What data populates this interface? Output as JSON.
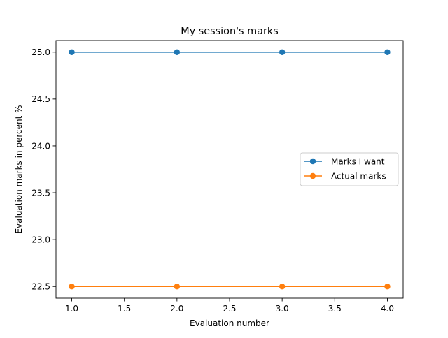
{
  "chart_data": {
    "type": "line",
    "title": "My session's marks",
    "xlabel": "Evaluation number",
    "ylabel": "Evaluation marks in percent %",
    "x": [
      1,
      2,
      3,
      4
    ],
    "xlim": [
      0.85,
      4.15
    ],
    "ylim": [
      22.375,
      25.125
    ],
    "xticks": [
      1.0,
      1.5,
      2.0,
      2.5,
      3.0,
      3.5,
      4.0
    ],
    "xtick_labels": [
      "1.0",
      "1.5",
      "2.0",
      "2.5",
      "3.0",
      "3.5",
      "4.0"
    ],
    "yticks": [
      22.5,
      23.0,
      23.5,
      24.0,
      24.5,
      25.0
    ],
    "ytick_labels": [
      "22.5",
      "23.0",
      "23.5",
      "24.0",
      "24.5",
      "25.0"
    ],
    "grid": false,
    "legend_position": "center-right",
    "series": [
      {
        "name": "Marks I want",
        "values": [
          25,
          25,
          25,
          25
        ],
        "color": "#1f77b4",
        "marker": "circle"
      },
      {
        "name": "Actual marks",
        "values": [
          22.5,
          22.5,
          22.5,
          22.5
        ],
        "color": "#ff7f0e",
        "marker": "circle"
      }
    ]
  }
}
